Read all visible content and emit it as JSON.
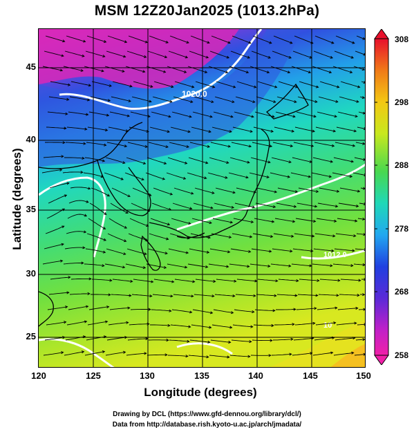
{
  "title": "MSM 12Z20Jan2025 (1013.2hPa)",
  "axes": {
    "xlabel": "Longitude (degrees)",
    "ylabel": "Latitude  (degrees)",
    "xticks": [
      "120",
      "125",
      "130",
      "135",
      "140",
      "145",
      "150"
    ],
    "yticks": [
      "25",
      "30",
      "35",
      "40",
      "45"
    ]
  },
  "colorbar": {
    "ticks": [
      "308",
      "298",
      "288",
      "278",
      "268",
      "258"
    ],
    "colors": [
      "#e8102c",
      "#f07a18",
      "#f3c814",
      "#c8e81e",
      "#48d850",
      "#20d8b8",
      "#22a8f0",
      "#2040e0",
      "#5a2ad8",
      "#c020c8",
      "#f020a8"
    ]
  },
  "contour_labels": [
    "1020.0",
    "1012.0",
    "10"
  ],
  "footer": {
    "line1": "Drawing by DCL (https://www.gfd-dennou.org/library/dcl/)",
    "line2": "Data from http://database.rish.kyoto-u.ac.jp/arch/jmadata/"
  }
}
